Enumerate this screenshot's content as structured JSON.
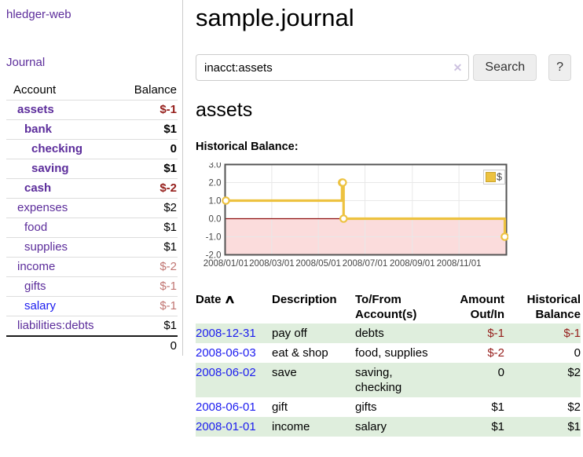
{
  "app": {
    "title": "hledger-web",
    "journal_link": "Journal"
  },
  "sidebar": {
    "headers": {
      "account": "Account",
      "balance": "Balance"
    },
    "accounts": [
      {
        "name": "assets",
        "balance": "$-1",
        "depth": 1,
        "bold": true,
        "balance_class": "neg-strong",
        "link_class": "lnk-purple"
      },
      {
        "name": "bank",
        "balance": "$1",
        "depth": 2,
        "bold": true,
        "balance_class": "",
        "link_class": "lnk-purple"
      },
      {
        "name": "checking",
        "balance": "0",
        "depth": 3,
        "bold": true,
        "balance_class": "",
        "link_class": "lnk-purple"
      },
      {
        "name": "saving",
        "balance": "$1",
        "depth": 3,
        "bold": true,
        "balance_class": "",
        "link_class": "lnk-purple"
      },
      {
        "name": "cash",
        "balance": "$-2",
        "depth": 2,
        "bold": true,
        "balance_class": "neg-strong",
        "link_class": "lnk-purple"
      },
      {
        "name": "expenses",
        "balance": "$2",
        "depth": 1,
        "bold": false,
        "balance_class": "",
        "link_class": "lnk-purple"
      },
      {
        "name": "food",
        "balance": "$1",
        "depth": 2,
        "bold": false,
        "balance_class": "",
        "link_class": "lnk-purple"
      },
      {
        "name": "supplies",
        "balance": "$1",
        "depth": 2,
        "bold": false,
        "balance_class": "",
        "link_class": "lnk-purple"
      },
      {
        "name": "income",
        "balance": "$-2",
        "depth": 1,
        "bold": false,
        "balance_class": "neg-soft",
        "link_class": "lnk-purple"
      },
      {
        "name": "gifts",
        "balance": "$-1",
        "depth": 2,
        "bold": false,
        "balance_class": "neg-soft",
        "link_class": "lnk-purple"
      },
      {
        "name": "salary",
        "balance": "$-1",
        "depth": 2,
        "bold": false,
        "balance_class": "neg-soft",
        "link_class": "lnk-blue"
      },
      {
        "name": "liabilities:debts",
        "balance": "$1",
        "depth": 1,
        "bold": false,
        "balance_class": "",
        "link_class": "lnk-purple"
      }
    ],
    "total": "0"
  },
  "main": {
    "title": "sample.journal",
    "search": {
      "value": "inacct:assets",
      "clear_icon": "✕",
      "search_button": "Search",
      "help_button": "?"
    },
    "account_heading": "assets",
    "chart_label": "Historical Balance:"
  },
  "chart_data": {
    "type": "line",
    "title": "Historical Balance",
    "steps": true,
    "series": [
      {
        "name": "$",
        "color": "#edc240",
        "points": [
          [
            "2008-01-01",
            1
          ],
          [
            "2008-06-01",
            2
          ],
          [
            "2008-06-02",
            2
          ],
          [
            "2008-06-03",
            0
          ],
          [
            "2008-12-31",
            -1
          ]
        ]
      }
    ],
    "x_ticks": [
      "2008/01/01",
      "2008/03/01",
      "2008/05/01",
      "2008/07/01",
      "2008/09/01",
      "2008/11/01"
    ],
    "y_ticks": [
      3.0,
      2.0,
      1.0,
      0.0,
      -1.0,
      -2.0
    ],
    "xlim": [
      "2008-01-01",
      "2008-12-31"
    ],
    "ylim": [
      -2,
      3
    ],
    "grid": true,
    "legend": {
      "position": "top-right",
      "label": "$"
    },
    "colors": {
      "series": "#edc240",
      "negative_region": "#fbdcdc",
      "zero_line": "#8e1010",
      "gridline": "#e8e8e8",
      "border": "#545454"
    }
  },
  "register": {
    "headers": {
      "date": "Date",
      "sort_icon": "∧",
      "description": "Description",
      "accounts": "To/From Account(s)",
      "amount": "Amount Out/In",
      "balance": "Historical Balance"
    },
    "rows": [
      {
        "date": "2008-12-31",
        "description": "pay off",
        "accounts": "debts",
        "amount": "$-1",
        "balance": "$-1",
        "amount_class": "neg",
        "balance_class": "neg"
      },
      {
        "date": "2008-06-03",
        "description": "eat & shop",
        "accounts": "food, supplies",
        "amount": "$-2",
        "balance": "0",
        "amount_class": "neg",
        "balance_class": ""
      },
      {
        "date": "2008-06-02",
        "description": "save",
        "accounts": "saving, checking",
        "amount": "0",
        "balance": "$2",
        "amount_class": "",
        "balance_class": ""
      },
      {
        "date": "2008-06-01",
        "description": "gift",
        "accounts": "gifts",
        "amount": "$1",
        "balance": "$2",
        "amount_class": "",
        "balance_class": ""
      },
      {
        "date": "2008-01-01",
        "description": "income",
        "accounts": "salary",
        "amount": "$1",
        "balance": "$1",
        "amount_class": "",
        "balance_class": ""
      }
    ]
  },
  "colors": {
    "link_purple": "#5c2d9b",
    "link_blue": "#1c1cef",
    "negative_strong": "#951e1b",
    "negative_soft": "#c17673",
    "row_stripe_green": "#dfeedd",
    "chart_line": "#edc240"
  }
}
